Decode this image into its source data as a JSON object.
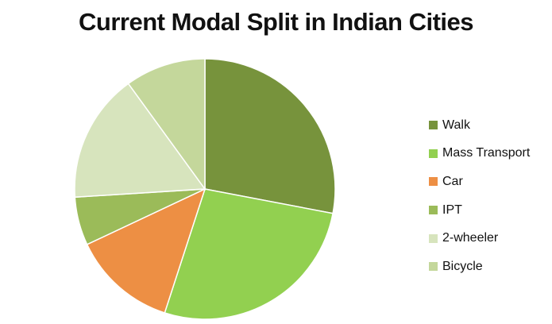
{
  "chart_data": {
    "type": "pie",
    "title": "Current Modal Split in Indian Cities",
    "categories": [
      "Walk",
      "Mass Transport",
      "Car",
      "IPT",
      "2-wheeler",
      "Bicycle"
    ],
    "values": [
      28,
      27,
      13,
      6,
      16,
      10
    ],
    "colors": [
      "#77933C",
      "#92D050",
      "#ED8F44",
      "#9BBB59",
      "#D7E4BD",
      "#C4D79B"
    ],
    "legend_position": "right"
  }
}
